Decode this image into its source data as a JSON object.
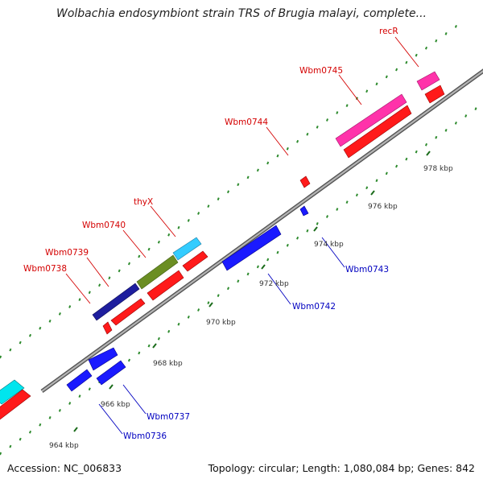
{
  "header": {
    "title": "Wolbachia endosymbiont strain TRS of Brugia malayi, complete..."
  },
  "footer": {
    "accession": "Accession: NC_006833",
    "summary": "Topology: circular; Length: 1,080,084 bp; Genes: 842"
  },
  "colors": {
    "backbone": "#8c8c8c",
    "tick": "#2e8b2e",
    "forward_label": "#d40000",
    "reverse_label": "#0000c0",
    "cds": "#ff1a1a",
    "reverse_cds": "#1a1aff"
  },
  "scale": {
    "ticks": [
      {
        "label": "964 kbp"
      },
      {
        "label": "966 kbp"
      },
      {
        "label": "968 kbp"
      },
      {
        "label": "970 kbp"
      },
      {
        "label": "972 kbp"
      },
      {
        "label": "974 kbp"
      },
      {
        "label": "976 kbp"
      },
      {
        "label": "978 kbp"
      }
    ]
  },
  "genes": [
    {
      "name": "Wbm0738",
      "strand": "forward",
      "color": "#ff1a1a"
    },
    {
      "name": "Wbm0739",
      "strand": "forward",
      "color": "#1e1e9e"
    },
    {
      "name": "Wbm0740",
      "strand": "forward",
      "color": "#6b8e23"
    },
    {
      "name": "thyX",
      "strand": "forward",
      "color": "#33ccff"
    },
    {
      "name": "Wbm0744",
      "strand": "forward",
      "color": "#ff1a1a"
    },
    {
      "name": "Wbm0745",
      "strand": "forward",
      "color": "#ff33aa"
    },
    {
      "name": "recR",
      "strand": "forward",
      "color": "#ff33aa"
    },
    {
      "name": "Wbm0736",
      "strand": "reverse",
      "color": "#1a1aff"
    },
    {
      "name": "Wbm0737",
      "strand": "reverse",
      "color": "#1a1aff"
    },
    {
      "name": "Wbm0742",
      "strand": "reverse",
      "color": "#1a1aff"
    },
    {
      "name": "Wbm0743",
      "strand": "reverse",
      "color": "#1a1aff"
    }
  ]
}
